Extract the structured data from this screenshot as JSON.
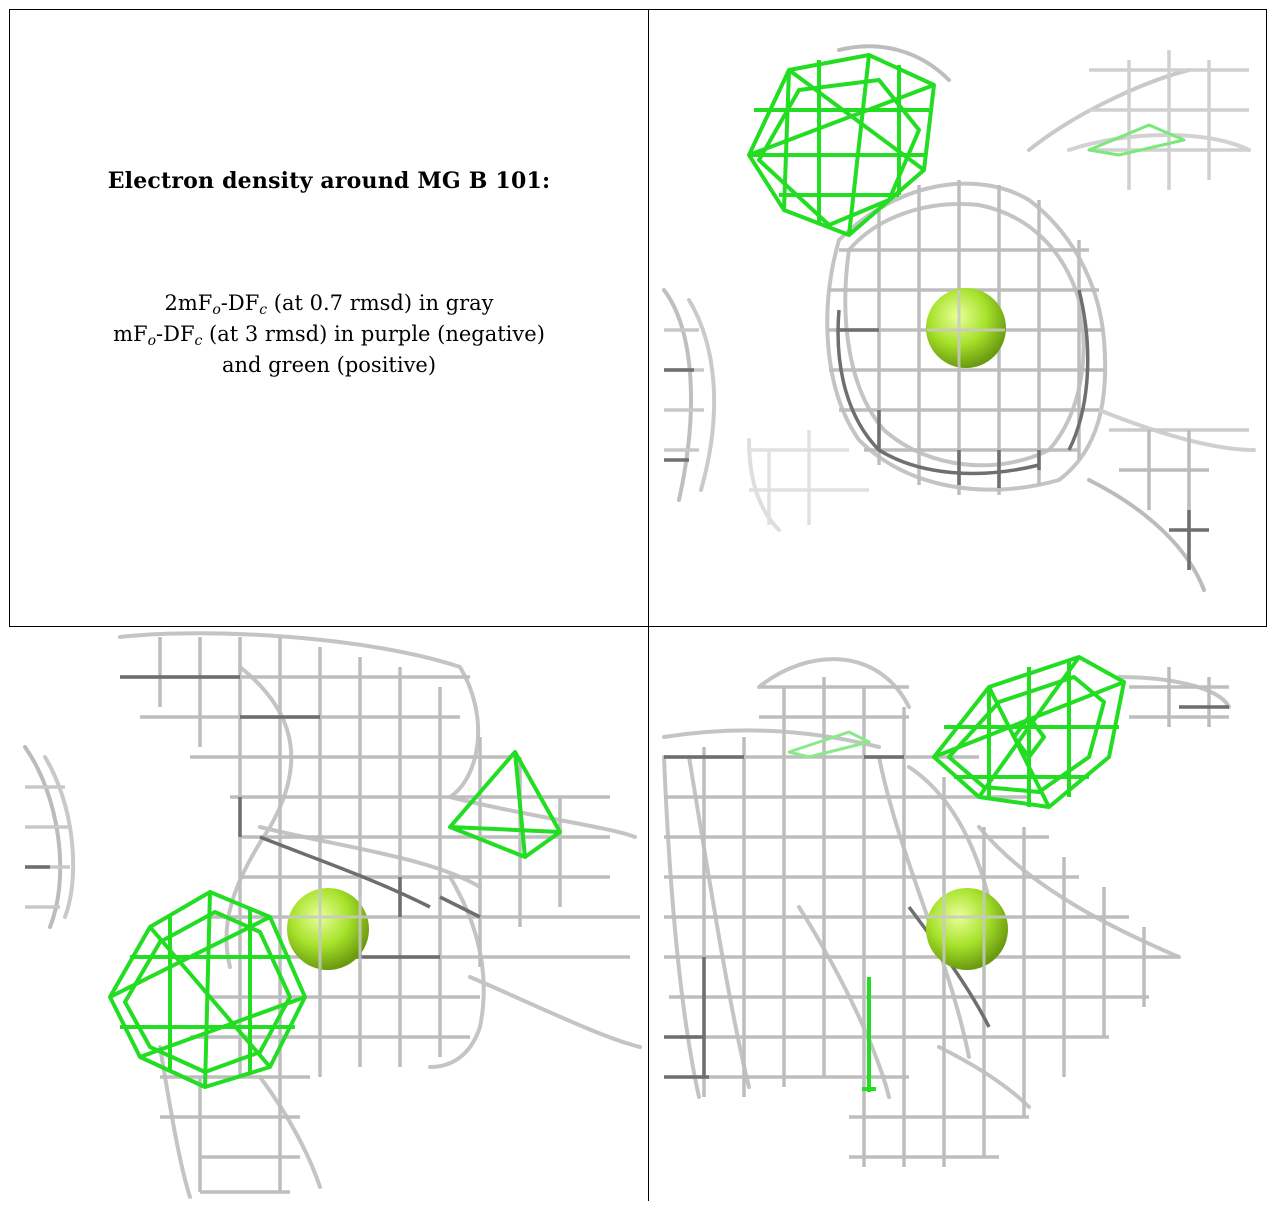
{
  "caption": {
    "title": "Electron density around MG B 101:",
    "line1": {
      "a": "2mF",
      "b": "o",
      "c": "-DF",
      "d": "c",
      "e": " (at 0.7 rmsd) in gray"
    },
    "line2": {
      "a": "mF",
      "b": "o",
      "c": "-DF",
      "d": "c",
      "e": " (at 3 rmsd) in purple (negative)"
    },
    "line3": "and green (positive)"
  },
  "colors": {
    "mesh_light": "#c8c8c8",
    "mesh_dark": "#6e6e6e",
    "mesh_positive": "#22dd22",
    "ion": "#a6e22a",
    "border": "#000000"
  },
  "panels": [
    {
      "view": "view-1",
      "ion": "MG B 101"
    },
    {
      "view": "view-2",
      "ion": "MG B 101"
    },
    {
      "view": "view-3",
      "ion": "MG B 101"
    }
  ]
}
